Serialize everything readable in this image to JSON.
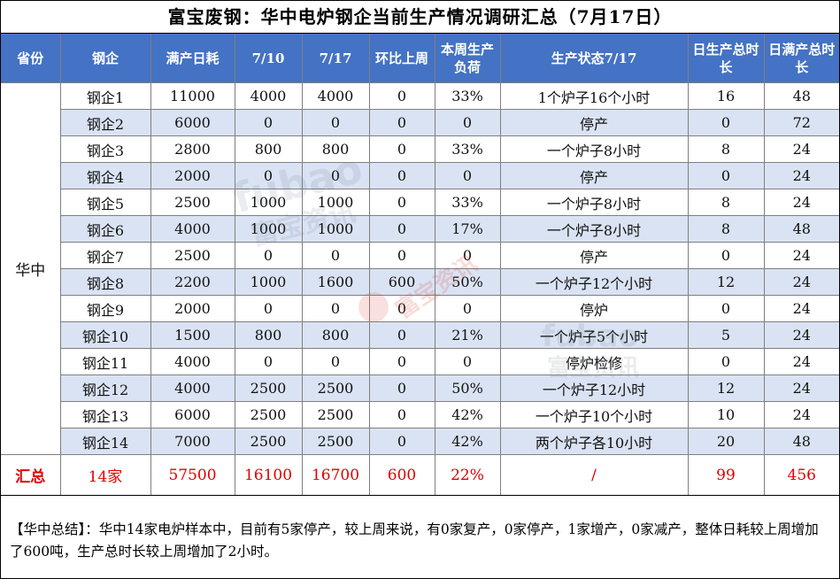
{
  "title": "富宝废钢：华中电炉钢企当前生产情况调研汇总（7月17日）",
  "headers": [
    "省份",
    "钢企",
    "满产日耗",
    "7/10",
    "7/17",
    "环比上周",
    "本周生产负荷",
    "生产状态7/17",
    "日生产总时长",
    "日满产总时长"
  ],
  "province": "华中",
  "rows": [
    {
      "company": "钢企1",
      "full": "11000",
      "d710": "4000",
      "d717": "4000",
      "wow": "0",
      "load": "33%",
      "status": "1个炉子16个小时",
      "prod_hours": "16",
      "full_hours": "48"
    },
    {
      "company": "钢企2",
      "full": "6000",
      "d710": "0",
      "d717": "0",
      "wow": "0",
      "load": "0",
      "status": "停产",
      "prod_hours": "0",
      "full_hours": "72"
    },
    {
      "company": "钢企3",
      "full": "2800",
      "d710": "800",
      "d717": "800",
      "wow": "0",
      "load": "33%",
      "status": "一个炉子8小时",
      "prod_hours": "8",
      "full_hours": "24"
    },
    {
      "company": "钢企4",
      "full": "2000",
      "d710": "0",
      "d717": "0",
      "wow": "0",
      "load": "0",
      "status": "停产",
      "prod_hours": "0",
      "full_hours": "24"
    },
    {
      "company": "钢企5",
      "full": "2500",
      "d710": "1000",
      "d717": "1000",
      "wow": "0",
      "load": "33%",
      "status": "一个炉子8小时",
      "prod_hours": "8",
      "full_hours": "24"
    },
    {
      "company": "钢企6",
      "full": "4000",
      "d710": "1000",
      "d717": "1000",
      "wow": "0",
      "load": "17%",
      "status": "一个炉子8小时",
      "prod_hours": "8",
      "full_hours": "48"
    },
    {
      "company": "钢企7",
      "full": "2500",
      "d710": "0",
      "d717": "0",
      "wow": "0",
      "load": "0",
      "status": "停产",
      "prod_hours": "0",
      "full_hours": "24"
    },
    {
      "company": "钢企8",
      "full": "2200",
      "d710": "1000",
      "d717": "1600",
      "wow": "600",
      "load": "50%",
      "status": "一个炉子12个小时",
      "prod_hours": "12",
      "full_hours": "24"
    },
    {
      "company": "钢企9",
      "full": "2000",
      "d710": "0",
      "d717": "0",
      "wow": "0",
      "load": "0",
      "status": "停炉",
      "prod_hours": "0",
      "full_hours": "24"
    },
    {
      "company": "钢企10",
      "full": "1500",
      "d710": "800",
      "d717": "800",
      "wow": "0",
      "load": "21%",
      "status": "一个炉子5个小时",
      "prod_hours": "5",
      "full_hours": "24"
    },
    {
      "company": "钢企11",
      "full": "4000",
      "d710": "0",
      "d717": "0",
      "wow": "0",
      "load": "0",
      "status": "停炉检修",
      "prod_hours": "0",
      "full_hours": "24"
    },
    {
      "company": "钢企12",
      "full": "4000",
      "d710": "2500",
      "d717": "2500",
      "wow": "0",
      "load": "50%",
      "status": "一个炉子12小时",
      "prod_hours": "12",
      "full_hours": "24"
    },
    {
      "company": "钢企13",
      "full": "6000",
      "d710": "2500",
      "d717": "2500",
      "wow": "0",
      "load": "42%",
      "status": "一个炉子10个小时",
      "prod_hours": "10",
      "full_hours": "24"
    },
    {
      "company": "钢企14",
      "full": "7000",
      "d710": "2500",
      "d717": "2500",
      "wow": "0",
      "load": "42%",
      "status": "两个炉子各10小时",
      "prod_hours": "20",
      "full_hours": "48"
    }
  ],
  "total": {
    "label": "汇总",
    "company": "14家",
    "full": "57500",
    "d710": "16100",
    "d717": "16700",
    "wow": "600",
    "load": "22%",
    "status": "/",
    "prod_hours": "99",
    "full_hours": "456"
  },
  "summary": "【华中总结】：华中14家电炉样本中，目前有5家停产，较上周来说，有0家复产，0家停产，1家增产，0家减产，整体日耗较上周增加了600吨，生产总时长较上周增加了2小时。",
  "colors": {
    "header_bg": "#4472c4",
    "alt_row": "#dae3f3",
    "total_text": "#e00000"
  },
  "watermark": {
    "latin": "fubao",
    "cn": "富宝资讯"
  }
}
